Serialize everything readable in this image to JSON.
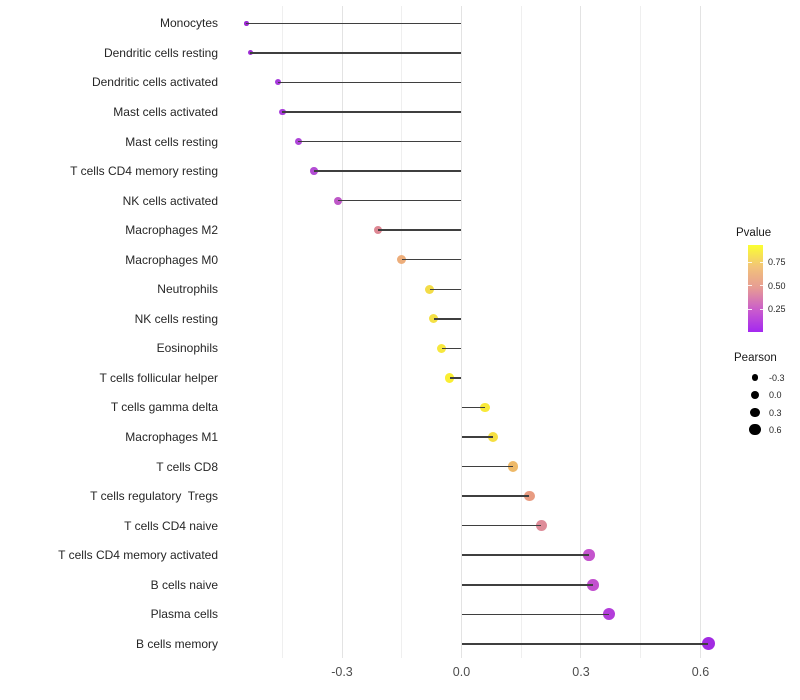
{
  "figure": {
    "background": "#ffffff",
    "stem_color": "#3f3f3f",
    "grid_major_color": "#e3e3e3",
    "grid_minor_color": "#efefef",
    "axis_text_color": "#4d4d4d",
    "label_text_color": "#262626"
  },
  "chart_data": {
    "type": "scatter",
    "subtype": "lollipop",
    "orientation": "horizontal",
    "title": "",
    "xlabel": "",
    "ylabel": "",
    "xlim": [
      -0.59,
      0.66
    ],
    "x_ticks": [
      -0.3,
      0.0,
      0.3,
      0.6
    ],
    "x_tick_labels": [
      "-0.3",
      "0.0",
      "0.3",
      "0.6"
    ],
    "grid_minor": [
      -0.45,
      -0.15,
      0.15,
      0.45
    ],
    "grid_major": [
      -0.3,
      0.0,
      0.3,
      0.6
    ],
    "series_note": "each point: y category, pearson (x value, also mapped to size), color encodes Pvalue",
    "points": [
      {
        "label": "Monocytes",
        "pearson": -0.54,
        "color": "#9B29D2",
        "size": 4.6
      },
      {
        "label": "Dendritic cells resting",
        "pearson": -0.53,
        "color": "#9E2CD5",
        "size": 5.0
      },
      {
        "label": "Dendritic cells activated",
        "pearson": -0.46,
        "color": "#A63ADB",
        "size": 6.2
      },
      {
        "label": "Mast cells activated",
        "pearson": -0.45,
        "color": "#A93EDC",
        "size": 6.6
      },
      {
        "label": "Mast cells resting",
        "pearson": -0.41,
        "color": "#AE46D8",
        "size": 7.1
      },
      {
        "label": "T cells CD4 memory resting",
        "pearson": -0.37,
        "color": "#B34DD4",
        "size": 7.5
      },
      {
        "label": "NK cells activated",
        "pearson": -0.31,
        "color": "#BE58C7",
        "size": 7.9
      },
      {
        "label": "Macrophages M2",
        "pearson": -0.21,
        "color": "#DD8793",
        "size": 8.7
      },
      {
        "label": "Macrophages M0",
        "pearson": -0.15,
        "color": "#EDAE7B",
        "size": 9.1
      },
      {
        "label": "Neutrophils",
        "pearson": -0.08,
        "color": "#F3DC48",
        "size": 9.3
      },
      {
        "label": "NK cells resting",
        "pearson": -0.07,
        "color": "#F4E046",
        "size": 9.3
      },
      {
        "label": "Eosinophils",
        "pearson": -0.05,
        "color": "#F7E83E",
        "size": 9.4
      },
      {
        "label": "T cells follicular helper",
        "pearson": -0.03,
        "color": "#FAEE33",
        "size": 9.5
      },
      {
        "label": "T cells gamma delta",
        "pearson": 0.06,
        "color": "#F8E93A",
        "size": 9.9
      },
      {
        "label": "Macrophages M1",
        "pearson": 0.08,
        "color": "#F5DF41",
        "size": 10.1
      },
      {
        "label": "T cells CD8",
        "pearson": 0.13,
        "color": "#EEB968",
        "size": 10.4
      },
      {
        "label": "T cells regulatory  Tregs",
        "pearson": 0.17,
        "color": "#E89B81",
        "size": 10.7
      },
      {
        "label": "T cells CD4 naive",
        "pearson": 0.2,
        "color": "#DE8C99",
        "size": 10.9
      },
      {
        "label": "T cells CD4 memory activated",
        "pearson": 0.32,
        "color": "#C454CD",
        "size": 11.5
      },
      {
        "label": "B cells naive",
        "pearson": 0.33,
        "color": "#C250CF",
        "size": 11.6
      },
      {
        "label": "Plasma cells",
        "pearson": 0.37,
        "color": "#B33DDA",
        "size": 12.0
      },
      {
        "label": "B cells memory",
        "pearson": 0.62,
        "color": "#A22BE2",
        "size": 13.2
      }
    ],
    "legend_color": {
      "title": "Pvalue",
      "tick_labels": [
        "0.75",
        "0.50",
        "0.25"
      ],
      "gradient_top_to_bottom": [
        "#FBFF31",
        "#F2C379",
        "#E69A95",
        "#C95BCD",
        "#A428F0"
      ]
    },
    "legend_size": {
      "title": "Pearson",
      "entries": [
        {
          "label": "-0.3",
          "d": 6.8
        },
        {
          "label": "0.0",
          "d": 8.2
        },
        {
          "label": "0.3",
          "d": 9.6
        },
        {
          "label": "0.6",
          "d": 11.2
        }
      ]
    }
  }
}
